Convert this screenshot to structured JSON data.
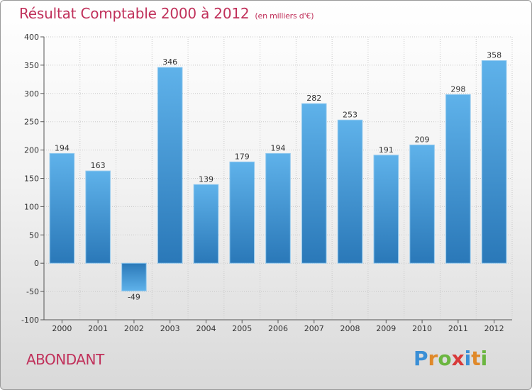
{
  "header": {
    "title": "Résultat Comptable 2000 à 2012",
    "subtitle": "(en milliers d'€)"
  },
  "footer": {
    "commune": "ABONDANT",
    "logo_letters": [
      {
        "ch": "P",
        "color": "#3a8fd6"
      },
      {
        "ch": "r",
        "color": "#e0892a"
      },
      {
        "ch": "o",
        "color": "#6bb640"
      },
      {
        "ch": "x",
        "color": "#d83a3a"
      },
      {
        "ch": "i",
        "color": "#3a8fd6"
      },
      {
        "ch": "t",
        "color": "#e0892a"
      },
      {
        "ch": "i",
        "color": "#6bb640"
      }
    ]
  },
  "chart_data": {
    "type": "bar",
    "title": "Résultat Comptable 2000 à 2012",
    "subtitle": "(en milliers d'€)",
    "categories": [
      "2000",
      "2001",
      "2002",
      "2003",
      "2004",
      "2005",
      "2006",
      "2007",
      "2008",
      "2009",
      "2010",
      "2011",
      "2012"
    ],
    "values": [
      194,
      163,
      -49,
      346,
      139,
      179,
      194,
      282,
      253,
      191,
      209,
      298,
      358
    ],
    "ylim": [
      -100,
      400
    ],
    "yticks": [
      -100,
      -50,
      0,
      50,
      100,
      150,
      200,
      250,
      300,
      350,
      400
    ],
    "grid": true,
    "bar_color": "#3b93d8",
    "xlabel": "",
    "ylabel": ""
  }
}
